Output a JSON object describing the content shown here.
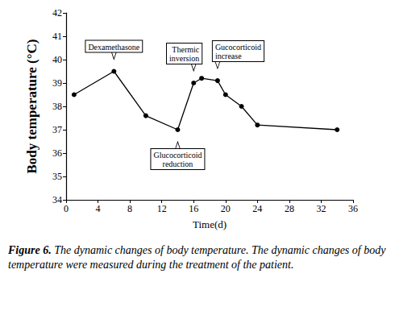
{
  "chart_data": {
    "type": "line",
    "xlabel": "Time(d)",
    "ylabel": "Body temperature (°C)",
    "x": [
      1,
      6,
      10,
      14,
      16,
      17,
      19,
      20,
      22,
      24,
      34
    ],
    "values": [
      38.5,
      39.5,
      37.6,
      37.0,
      39.0,
      39.2,
      39.1,
      38.5,
      38.0,
      37.2,
      37.0
    ],
    "color": "#000000",
    "marker": "circle",
    "line_style": "solid",
    "xlim": [
      0,
      36
    ],
    "xticks": [
      0,
      4,
      8,
      12,
      16,
      20,
      24,
      28,
      32,
      36
    ],
    "ylim": [
      34,
      42
    ],
    "yticks": [
      34,
      35,
      36,
      37,
      38,
      39,
      40,
      41,
      42
    ],
    "grid": false,
    "annotations": [
      {
        "text": "Dexamethasone",
        "x": 6,
        "y": 39.5,
        "position": "above"
      },
      {
        "text": "Glucocorticoid\nreduction",
        "x": 14,
        "y": 37.0,
        "position": "below"
      },
      {
        "text": "Thermic\ninversion",
        "x": 16,
        "y": 39.0,
        "position": "above"
      },
      {
        "text": "Gucocorticoid\nincrease",
        "x": 19,
        "y": 39.1,
        "position": "above"
      }
    ],
    "caption_label": "Figure 6.",
    "caption": "The dynamic changes of body temperature. The dynamic changes of body temperature were measured during the treatment of the patient."
  }
}
